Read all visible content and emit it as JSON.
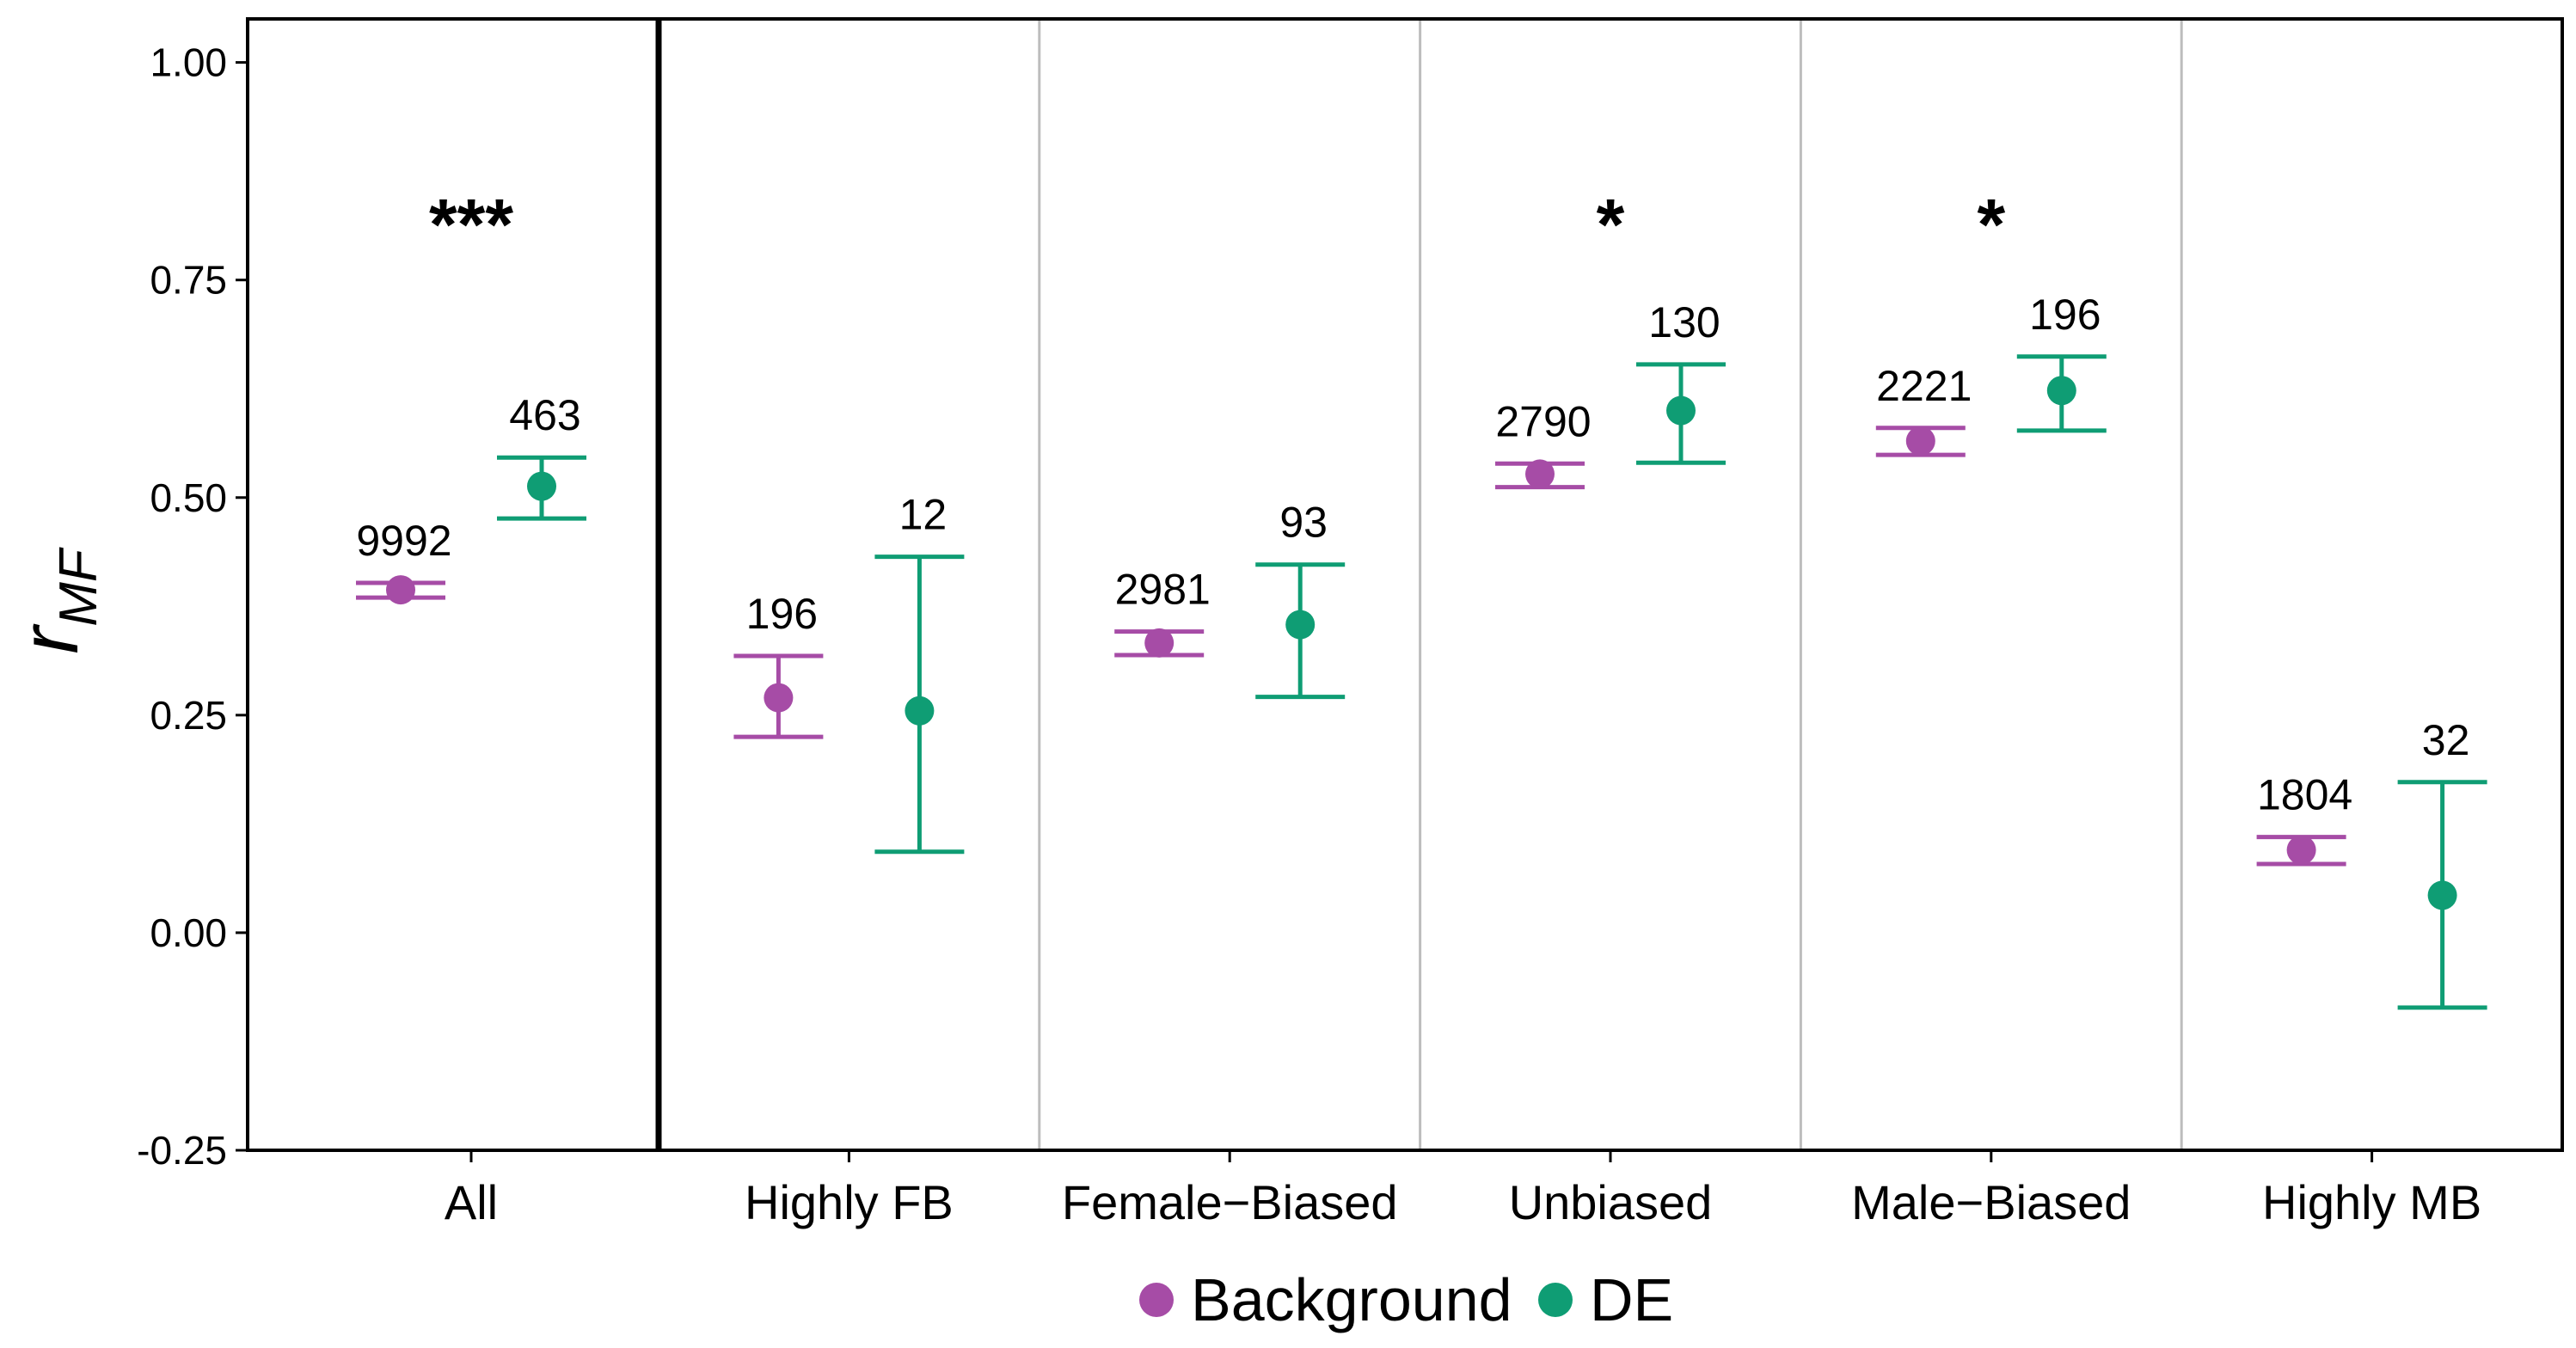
{
  "chart_data": {
    "type": "scatter",
    "ylabel": "r",
    "ylabel_subscript": "MF",
    "xlabel": "",
    "ylim": [
      -0.25,
      1.05
    ],
    "yticks": [
      "-0.25",
      "0.00",
      "0.25",
      "0.50",
      "0.75",
      "1.00"
    ],
    "ytick_values": [
      -0.25,
      0.0,
      0.25,
      0.5,
      0.75,
      1.0
    ],
    "categories": [
      "All",
      "Highly FB",
      "Female−Biased",
      "Unbiased",
      "Male−Biased",
      "Highly MB"
    ],
    "grid": "vertical separators between categories",
    "legend_position": "bottom",
    "series": [
      {
        "name": "Background",
        "color": "#a64ca6",
        "points": [
          {
            "category": "All",
            "y": 0.394,
            "low": 0.385,
            "high": 0.402,
            "n": "9992"
          },
          {
            "category": "Highly FB",
            "y": 0.27,
            "low": 0.225,
            "high": 0.318,
            "n": "196"
          },
          {
            "category": "Female−Biased",
            "y": 0.333,
            "low": 0.319,
            "high": 0.346,
            "n": "2981"
          },
          {
            "category": "Unbiased",
            "y": 0.527,
            "low": 0.512,
            "high": 0.539,
            "n": "2790"
          },
          {
            "category": "Male−Biased",
            "y": 0.565,
            "low": 0.549,
            "high": 0.58,
            "n": "2221"
          },
          {
            "category": "Highly MB",
            "y": 0.095,
            "low": 0.079,
            "high": 0.11,
            "n": "1804"
          }
        ]
      },
      {
        "name": "DE",
        "color": "#0f9d74",
        "points": [
          {
            "category": "All",
            "y": 0.513,
            "low": 0.476,
            "high": 0.546,
            "n": "463"
          },
          {
            "category": "Highly FB",
            "y": 0.255,
            "low": 0.093,
            "high": 0.432,
            "n": "12"
          },
          {
            "category": "Female−Biased",
            "y": 0.354,
            "low": 0.271,
            "high": 0.423,
            "n": "93"
          },
          {
            "category": "Unbiased",
            "y": 0.6,
            "low": 0.54,
            "high": 0.653,
            "n": "130"
          },
          {
            "category": "Male−Biased",
            "y": 0.623,
            "low": 0.577,
            "high": 0.662,
            "n": "196"
          },
          {
            "category": "Highly MB",
            "y": 0.043,
            "low": -0.086,
            "high": 0.173,
            "n": "32"
          }
        ]
      }
    ],
    "significance": [
      {
        "category": "All",
        "label": "***"
      },
      {
        "category": "Unbiased",
        "label": "*"
      },
      {
        "category": "Male−Biased",
        "label": "*"
      }
    ]
  }
}
